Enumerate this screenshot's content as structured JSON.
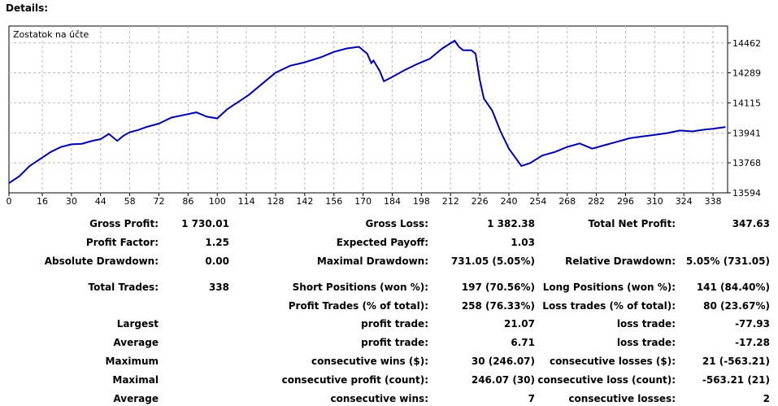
{
  "details_label": "Details:",
  "chart_data": {
    "type": "line",
    "title": "Zostatok na účte",
    "x_ticks": [
      0,
      16,
      30,
      44,
      58,
      72,
      86,
      100,
      114,
      128,
      142,
      156,
      170,
      184,
      198,
      212,
      226,
      240,
      254,
      268,
      282,
      296,
      310,
      324,
      338
    ],
    "y_ticks": [
      13594,
      13768,
      13941,
      14115,
      14289,
      14462
    ],
    "xlim": [
      0,
      345
    ],
    "ylim": [
      13594,
      14560
    ],
    "grid": true,
    "line_color": "#0000aa",
    "series": [
      {
        "x": [
          0,
          5,
          10,
          15,
          20,
          25,
          30,
          35,
          40,
          44,
          48,
          52,
          55,
          58,
          62,
          66,
          72,
          78,
          84,
          90,
          95,
          100,
          105,
          110,
          115,
          120,
          125,
          128,
          135,
          142,
          150,
          156,
          162,
          168,
          172,
          174,
          175,
          178,
          180,
          184,
          190,
          196,
          202,
          208,
          214,
          216,
          218,
          222,
          224,
          226,
          228,
          232,
          236,
          240,
          246,
          250,
          256,
          262,
          268,
          274,
          280,
          286,
          292,
          298,
          304,
          310,
          316,
          322,
          328,
          334,
          338,
          344
        ],
        "y": [
          13650,
          13690,
          13750,
          13790,
          13830,
          13860,
          13875,
          13878,
          13895,
          13905,
          13935,
          13895,
          13925,
          13945,
          13958,
          13975,
          13995,
          14030,
          14045,
          14060,
          14035,
          14025,
          14080,
          14120,
          14160,
          14210,
          14260,
          14290,
          14330,
          14350,
          14380,
          14410,
          14430,
          14440,
          14400,
          14345,
          14360,
          14300,
          14240,
          14265,
          14305,
          14340,
          14370,
          14430,
          14475,
          14440,
          14420,
          14420,
          14400,
          14250,
          14140,
          14070,
          13950,
          13850,
          13750,
          13765,
          13810,
          13830,
          13860,
          13880,
          13850,
          13870,
          13890,
          13910,
          13920,
          13930,
          13940,
          13955,
          13950,
          13960,
          13965,
          13975
        ]
      }
    ]
  },
  "stats": {
    "gross_profit": {
      "label": "Gross Profit:",
      "value": "1 730.01"
    },
    "gross_loss": {
      "label": "Gross Loss:",
      "value": "1 382.38"
    },
    "total_net_profit": {
      "label": "Total Net Profit:",
      "value": "347.63"
    },
    "profit_factor": {
      "label": "Profit Factor:",
      "value": "1.25"
    },
    "expected_payoff": {
      "label": "Expected Payoff:",
      "value": "1.03"
    },
    "absolute_drawdown": {
      "label": "Absolute Drawdown:",
      "value": "0.00"
    },
    "maximal_drawdown": {
      "label": "Maximal Drawdown:",
      "value": "731.05 (5.05%)"
    },
    "relative_drawdown": {
      "label": "Relative Drawdown:",
      "value": "5.05% (731.05)"
    },
    "total_trades": {
      "label": "Total Trades:",
      "value": "338"
    },
    "short_positions": {
      "label": "Short Positions (won %):",
      "value": "197 (70.56%)"
    },
    "long_positions": {
      "label": "Long Positions (won %):",
      "value": "141 (84.40%)"
    },
    "profit_trades": {
      "label": "Profit Trades (% of total):",
      "value": "258 (76.33%)"
    },
    "loss_trades": {
      "label": "Loss trades (% of total):",
      "value": "80 (23.67%)"
    },
    "largest": {
      "label": "Largest",
      "profit_label": "profit trade:",
      "profit_value": "21.07",
      "loss_label": "loss trade:",
      "loss_value": "-77.93"
    },
    "average": {
      "label": "Average",
      "profit_label": "profit trade:",
      "profit_value": "6.71",
      "loss_label": "loss trade:",
      "loss_value": "-17.28"
    },
    "maximum": {
      "label": "Maximum",
      "profit_label": "consecutive wins ($):",
      "profit_value": "30 (246.07)",
      "loss_label": "consecutive losses ($):",
      "loss_value": "21 (-563.21)"
    },
    "maximal": {
      "label": "Maximal",
      "profit_label": "consecutive profit (count):",
      "profit_value": "246.07 (30)",
      "loss_label": "consecutive loss (count):",
      "loss_value": "-563.21 (21)"
    },
    "average_consec": {
      "label": "Average",
      "profit_label": "consecutive wins:",
      "profit_value": "7",
      "loss_label": "consecutive losses:",
      "loss_value": "2"
    }
  }
}
